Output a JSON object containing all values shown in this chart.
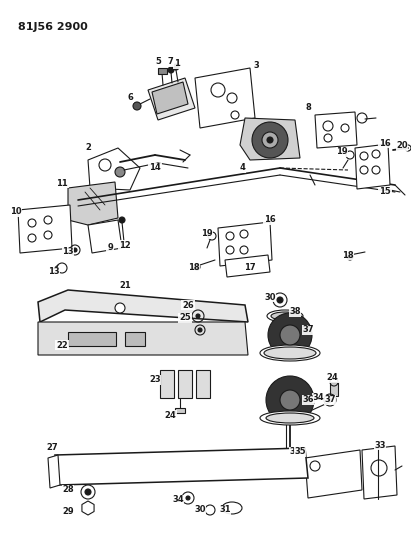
{
  "title": "81J56 2900",
  "bg_color": "#ffffff",
  "lc": "#1a1a1a",
  "fig_w": 4.11,
  "fig_h": 5.33,
  "dpi": 100,
  "label_fs": 6.0,
  "title_fs": 8.0,
  "lw": 0.8
}
